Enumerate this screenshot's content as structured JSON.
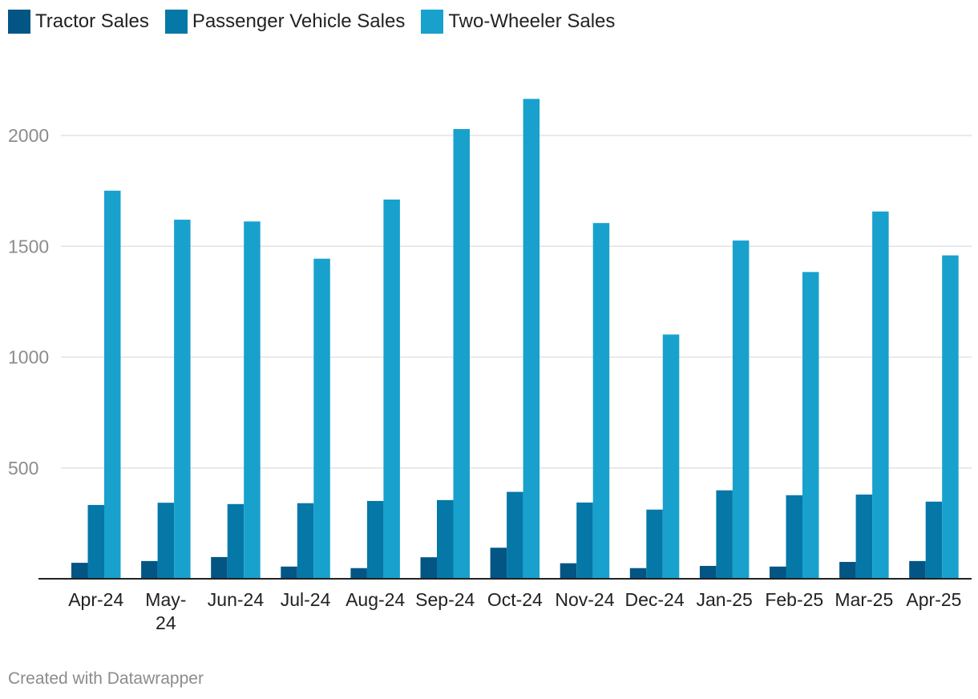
{
  "chart_data": {
    "type": "bar",
    "categories": [
      "Apr-24",
      "May-24",
      "Jun-24",
      "Jul-24",
      "Aug-24",
      "Sep-24",
      "Oct-24",
      "Nov-24",
      "Dec-24",
      "Jan-25",
      "Feb-25",
      "Mar-25",
      "Apr-25"
    ],
    "category_lines": [
      [
        "Apr-24"
      ],
      [
        "May-",
        "24"
      ],
      [
        "Jun-24"
      ],
      [
        "Jul-24"
      ],
      [
        "Aug-24"
      ],
      [
        "Sep-24"
      ],
      [
        "Oct-24"
      ],
      [
        "Nov-24"
      ],
      [
        "Dec-24"
      ],
      [
        "Jan-25"
      ],
      [
        "Feb-25"
      ],
      [
        "Mar-25"
      ],
      [
        "Apr-25"
      ]
    ],
    "series": [
      {
        "name": "Tractor Sales",
        "color": "#035584",
        "values": [
          72,
          80,
          98,
          55,
          48,
          97,
          140,
          70,
          48,
          58,
          55,
          76,
          80
        ]
      },
      {
        "name": "Passenger Vehicle Sales",
        "color": "#0578a7",
        "values": [
          333,
          343,
          337,
          341,
          351,
          355,
          392,
          344,
          312,
          399,
          377,
          380,
          348
        ]
      },
      {
        "name": "Two-Wheeler Sales",
        "color": "#18a1cd",
        "values": [
          1751,
          1620,
          1612,
          1444,
          1711,
          2029,
          2165,
          1605,
          1102,
          1526,
          1384,
          1657,
          1459
        ]
      }
    ],
    "y_ticks": [
      500,
      1000,
      1500,
      2000
    ],
    "ylim": [
      0,
      2250
    ],
    "grid": true,
    "legend_position": "top-left",
    "title": "",
    "xlabel": "",
    "ylabel": ""
  },
  "footer": {
    "credit": "Created with Datawrapper"
  }
}
